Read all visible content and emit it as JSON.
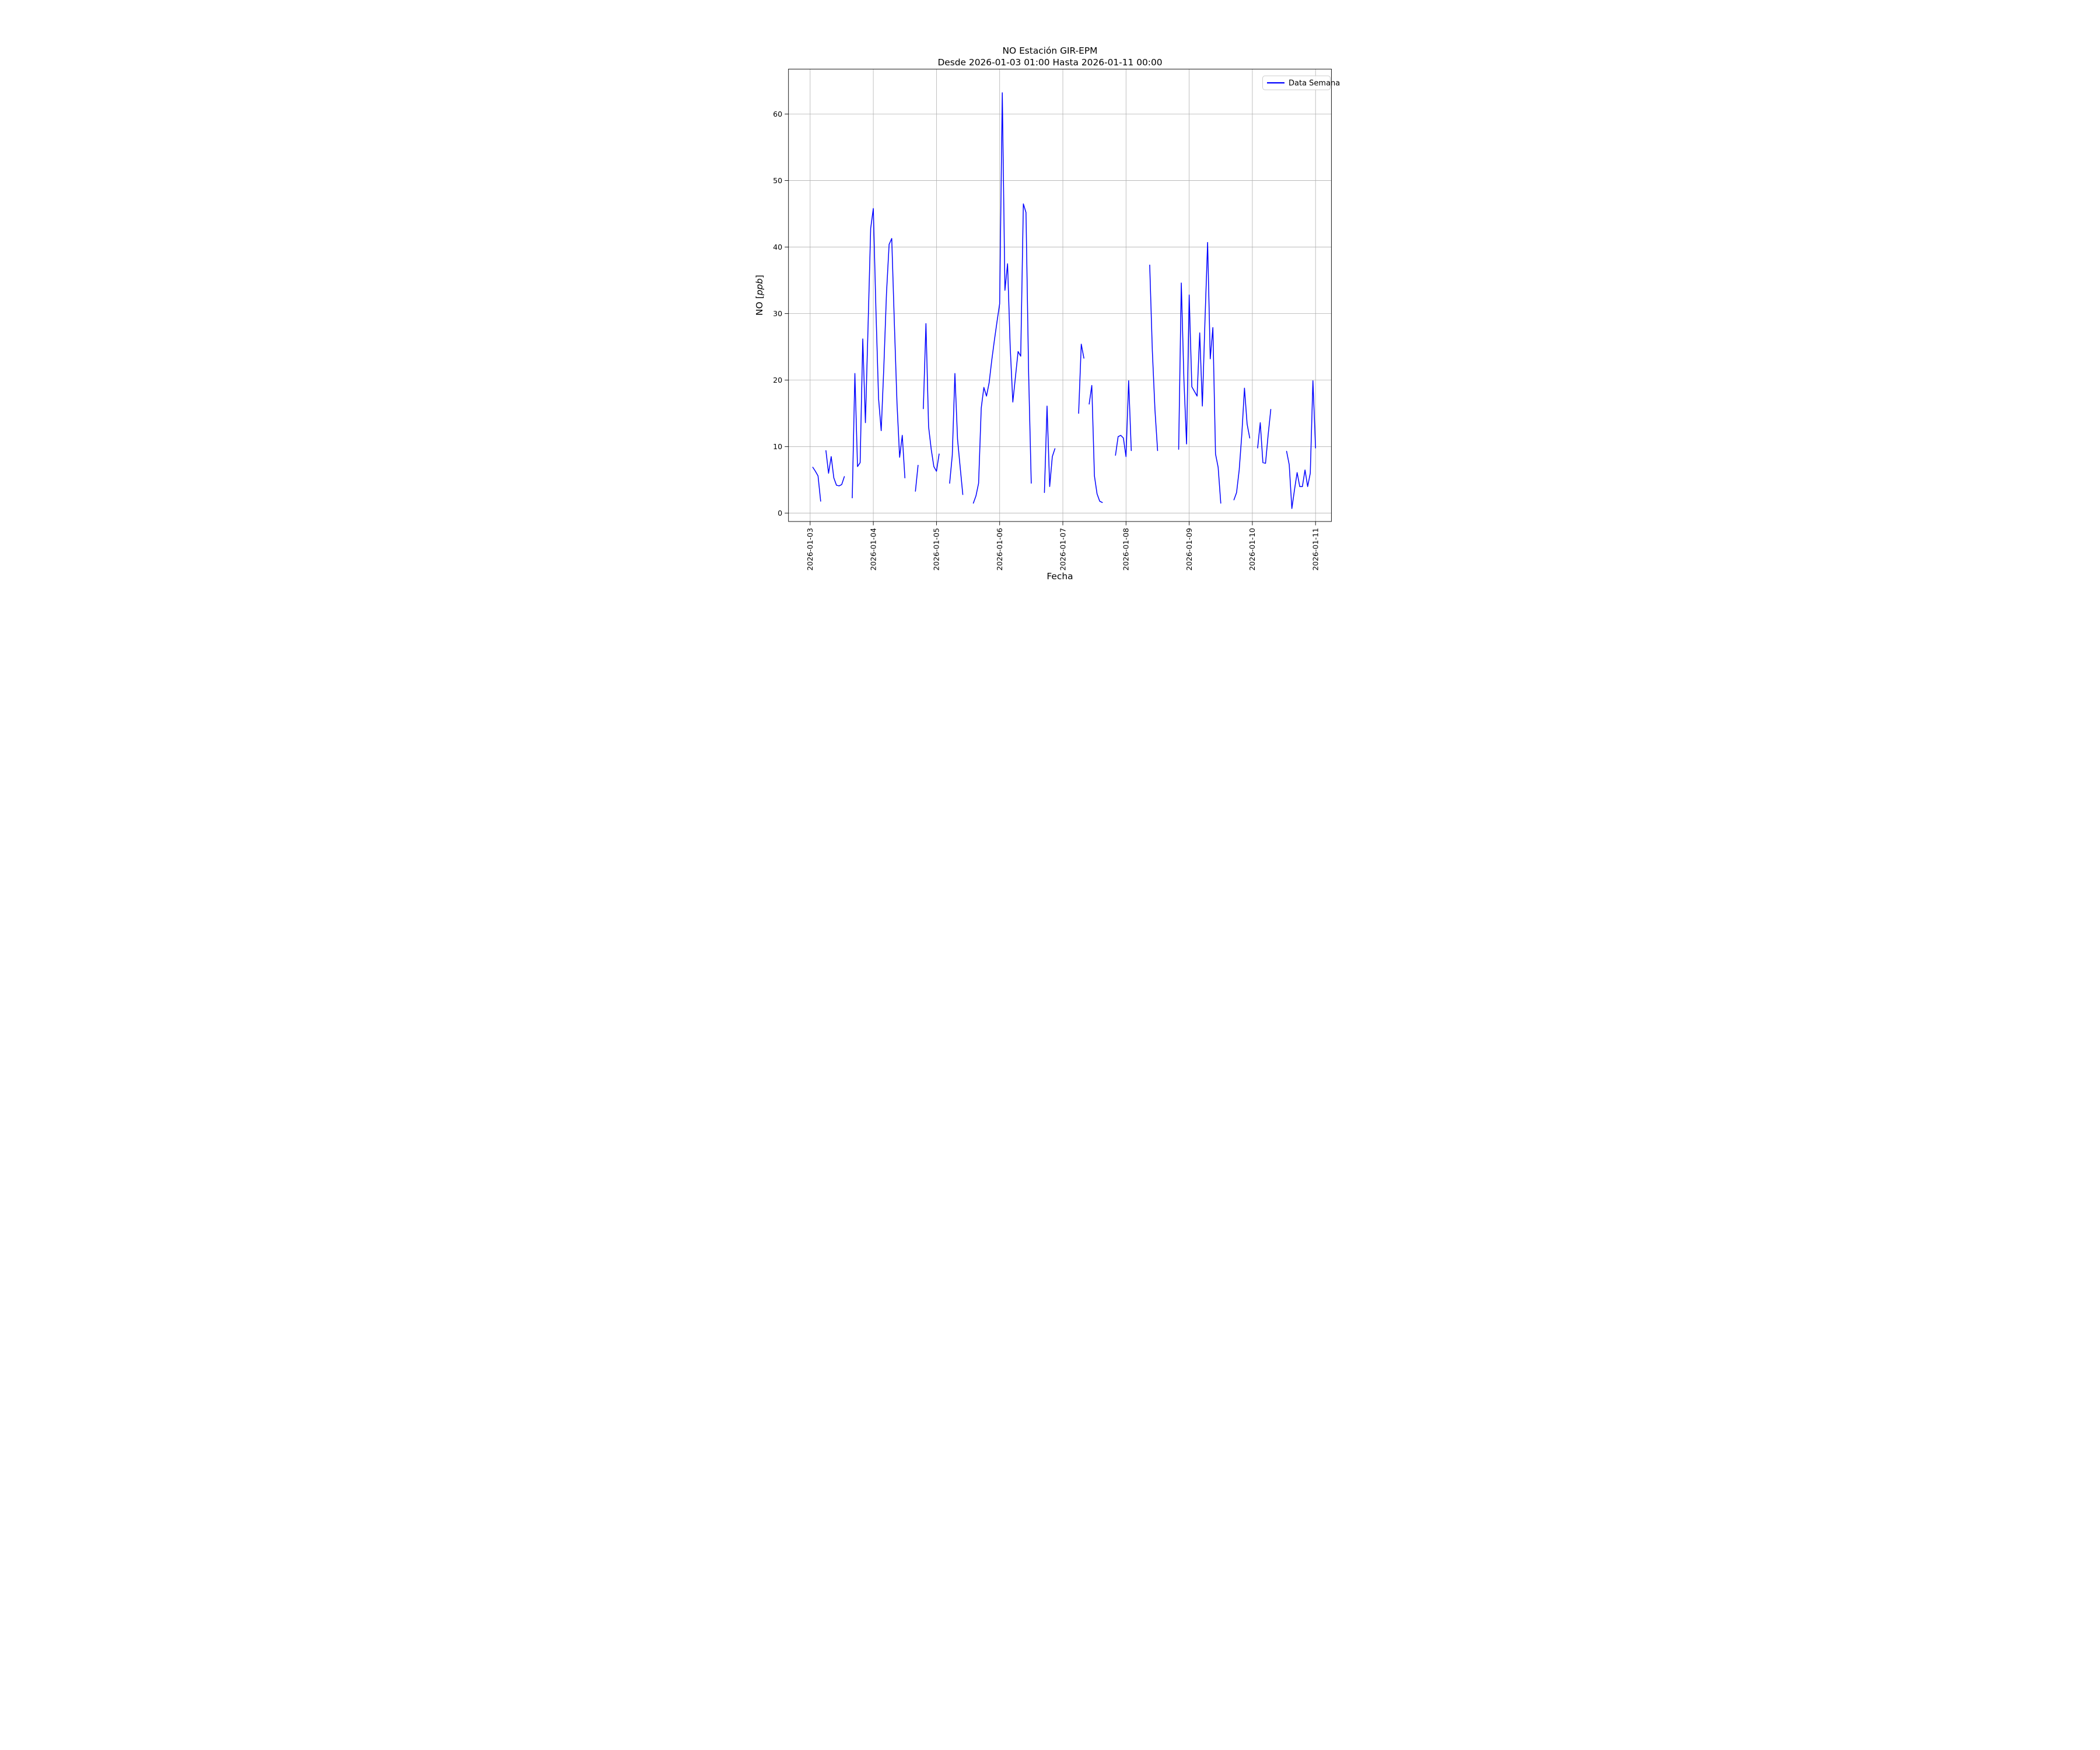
{
  "title": {
    "line1": "NO Estación GIR-EPM",
    "line2": "Desde 2026-01-03 01:00 Hasta 2026-01-11 00:00"
  },
  "axes": {
    "xlabel": "Fecha",
    "ylabel_prefix": "NO [",
    "ylabel_italic": "ppb",
    "ylabel_suffix": "]"
  },
  "legend": {
    "label": "Data Semana"
  },
  "colors": {
    "line": "#0000ff",
    "grid": "#b0b0b0",
    "text": "#000000"
  },
  "chart_data": {
    "type": "line",
    "title": "NO Estación GIR-EPM — Desde 2026-01-03 01:00 Hasta 2026-01-11 00:00",
    "xlabel": "Fecha",
    "ylabel": "NO [ppb]",
    "legend_entries": [
      "Data Semana"
    ],
    "legend_position": "upper right",
    "grid": true,
    "line_color": "#0000ff",
    "x_start": "2026-01-03 01:00",
    "x_end": "2026-01-11 00:00",
    "interval_hours": 1,
    "x_tick_labels": [
      "2026-01-03",
      "2026-01-04",
      "2026-01-05",
      "2026-01-06",
      "2026-01-07",
      "2026-01-08",
      "2026-01-09",
      "2026-01-10",
      "2026-01-11"
    ],
    "x_tick_hours": [
      0,
      24,
      48,
      72,
      96,
      120,
      144,
      168,
      192
    ],
    "yticks": [
      0,
      10,
      20,
      30,
      40,
      50,
      60
    ],
    "note": "values are hourly NO [ppb]; null = missing data (gap in line)",
    "values": [
      6.9,
      6.3,
      5.6,
      1.8,
      null,
      9.4,
      6.0,
      8.5,
      5.3,
      4.2,
      4.1,
      4.3,
      5.5,
      null,
      null,
      2.3,
      21.0,
      7.0,
      7.6,
      26.2,
      13.6,
      28.0,
      42.8,
      45.8,
      30.5,
      17.2,
      12.4,
      22.0,
      33.0,
      40.4,
      41.3,
      28.5,
      16.5,
      8.4,
      11.7,
      5.3,
      null,
      null,
      null,
      3.3,
      7.2,
      null,
      15.7,
      28.5,
      13.0,
      9.6,
      7.0,
      6.3,
      8.9,
      null,
      null,
      null,
      4.5,
      8.7,
      21.0,
      11.1,
      6.9,
      2.8,
      null,
      null,
      null,
      1.5,
      2.6,
      4.5,
      15.8,
      18.9,
      17.6,
      19.6,
      23.0,
      26.0,
      28.8,
      31.5,
      63.2,
      33.5,
      37.5,
      25.0,
      16.7,
      20.5,
      24.3,
      23.6,
      46.5,
      45.2,
      21.0,
      4.5,
      null,
      null,
      null,
      null,
      3.1,
      16.1,
      4.0,
      8.5,
      9.7,
      null,
      null,
      null,
      null,
      null,
      null,
      null,
      null,
      15.0,
      25.4,
      23.3,
      null,
      16.4,
      19.2,
      5.6,
      2.9,
      1.8,
      1.6,
      null,
      null,
      null,
      null,
      8.7,
      11.5,
      11.7,
      11.3,
      8.5,
      19.9,
      9.4,
      null,
      null,
      null,
      null,
      null,
      null,
      37.3,
      24.4,
      15.5,
      9.4,
      null,
      null,
      null,
      null,
      null,
      null,
      null,
      9.6,
      34.6,
      20.0,
      10.4,
      32.8,
      19.0,
      18.3,
      17.6,
      27.1,
      16.1,
      29.0,
      40.7,
      23.2,
      27.9,
      8.9,
      6.9,
      1.5,
      null,
      null,
      null,
      null,
      2.0,
      3.1,
      6.5,
      11.9,
      18.8,
      13.4,
      11.3,
      null,
      null,
      9.8,
      13.6,
      7.6,
      7.5,
      11.8,
      15.6,
      null,
      null,
      null,
      null,
      null,
      9.3,
      7.3,
      0.7,
      3.5,
      6.1,
      4.0,
      4.0,
      6.5,
      4.0,
      6.0,
      19.9,
      9.8
    ]
  }
}
